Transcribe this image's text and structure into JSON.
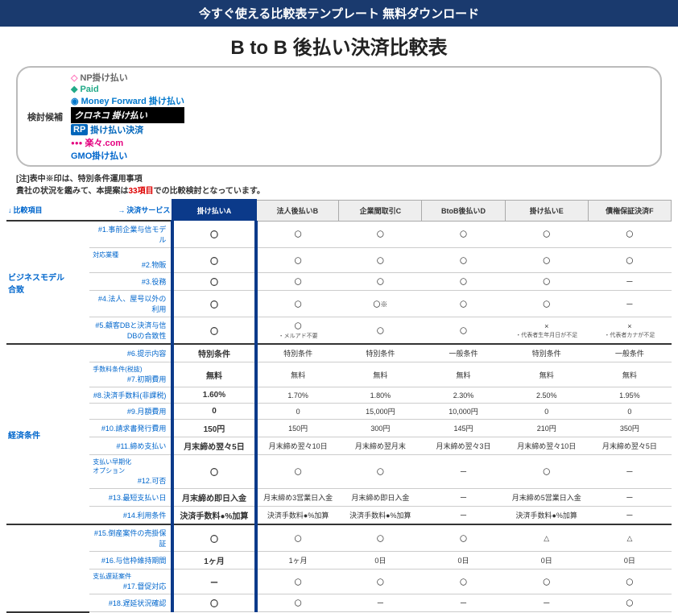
{
  "banner": "今すぐ使える比較表テンプレート 無料ダウンロード",
  "title": "B to B 後払い決済比較表",
  "candidates": {
    "label": "検討候補",
    "items": [
      {
        "name": "NP掛け払い",
        "kind": "np"
      },
      {
        "name": "Paid",
        "kind": "paid"
      },
      {
        "name": "Money Forward 掛け払い",
        "kind": "mf"
      },
      {
        "name": "クロネコ 掛け払い",
        "kind": "kuro"
      },
      {
        "name": "掛け払い決済",
        "kind": "rp",
        "badge": "RP"
      },
      {
        "name": "楽々.com",
        "kind": "raku"
      },
      {
        "name": "GMO掛け払い",
        "kind": "gmo"
      }
    ]
  },
  "notes": {
    "line1a": "[注]表中※印は、特別条件運用事項",
    "line2a": "貴社の状況を鑑みて、本提案は",
    "line2b": "33項目",
    "line2c": "での比較検討となっています。"
  },
  "head": {
    "cmp": "比較項目",
    "svc": "決済サービス",
    "cols": [
      "掛け払いA",
      "法人後払いB",
      "企業間取引C",
      "BtoB後払いD",
      "掛け払いE",
      "債権保証決済F"
    ]
  },
  "groups": [
    {
      "cat": "ビジネスモデル\n合致",
      "rows": [
        {
          "sub": "#1.事前企業与信モデル",
          "v": [
            "〇",
            "〇",
            "〇",
            "〇",
            "〇",
            "〇"
          ]
        },
        {
          "sublabel": "対応業種",
          "sub": "#2.物販",
          "v": [
            "〇",
            "〇",
            "〇",
            "〇",
            "〇",
            "〇"
          ]
        },
        {
          "sub": "#3.役務",
          "v": [
            "〇",
            "〇",
            "〇",
            "〇",
            "〇",
            "ー"
          ]
        },
        {
          "sub": "#4.法人、屋号以外の利用",
          "v": [
            "〇",
            "〇",
            "〇※",
            "〇",
            "〇",
            "ー"
          ]
        },
        {
          "sub": "#5.顧客DBと決済与信DBの合致性",
          "v": [
            "〇",
            "〇\n・メルアド不要",
            "〇",
            "〇",
            "×\n・代表者生年月日が不足",
            "×\n・代表者カナが不足"
          ],
          "sep": true
        }
      ]
    },
    {
      "cat": "経済条件",
      "rows": [
        {
          "sub": "#6.提示内容",
          "v": [
            "特別条件",
            "特別条件",
            "特別条件",
            "一般条件",
            "特別条件",
            "一般条件"
          ]
        },
        {
          "sublabel": "手数料条件(税抜)",
          "sub": "#7.初期費用",
          "v": [
            "無料",
            "無料",
            "無料",
            "無料",
            "無料",
            "無料"
          ]
        },
        {
          "sub": "#8.決済手数料(非課税)",
          "v": [
            "1.60%",
            "1.70%",
            "1.80%",
            "2.30%",
            "2.50%",
            "1.95%"
          ]
        },
        {
          "sub": "#9.月額費用",
          "v": [
            "0",
            "0",
            "15,000円",
            "10,000円",
            "0",
            "0"
          ]
        },
        {
          "sub": "#10.請求書発行費用",
          "v": [
            "150円",
            "150円",
            "300円",
            "145円",
            "210円",
            "350円"
          ]
        },
        {
          "sub": "#11.締め支払い",
          "v": [
            "月末締め翌々5日",
            "月末締め翌々10日",
            "月末締め翌月末",
            "月末締め翌々3日",
            "月末締め翌々10日",
            "月末締め翌々5日"
          ]
        },
        {
          "sublabel": "支払い早期化\nオプション",
          "sub": "#12.可否",
          "v": [
            "〇",
            "〇",
            "〇",
            "ー",
            "〇",
            "ー"
          ]
        },
        {
          "sub": "#13.最短支払い日",
          "v": [
            "月末締め即日入金",
            "月末締め3営業日入金",
            "月末締め即日入金",
            "ー",
            "月末締め5営業日入金",
            "ー"
          ]
        },
        {
          "sub": "#14.利用条件",
          "v": [
            "決済手数料●%加算",
            "決済手数料●%加算",
            "決済手数料●%加算",
            "ー",
            "決済手数料●%加算",
            "ー"
          ],
          "sep": true
        }
      ]
    },
    {
      "cat": "",
      "rows": [
        {
          "sub": "#15.倒産案件の売掛保証",
          "v": [
            "〇",
            "〇",
            "〇",
            "〇",
            "△",
            "△"
          ]
        },
        {
          "sub": "#16.与信枠維持期間",
          "v": [
            "1ヶ月",
            "1ヶ月",
            "0日",
            "0日",
            "0日",
            "0日"
          ]
        },
        {
          "sublabel": "支払遅延案件",
          "sub": "#17.督促対応",
          "v": [
            "ー",
            "〇",
            "〇",
            "〇",
            "〇",
            "〇"
          ]
        },
        {
          "sub": "#18.遅延状況確認",
          "v": [
            "〇",
            "〇",
            "ー",
            "ー",
            "ー",
            "〇"
          ]
        }
      ]
    }
  ]
}
